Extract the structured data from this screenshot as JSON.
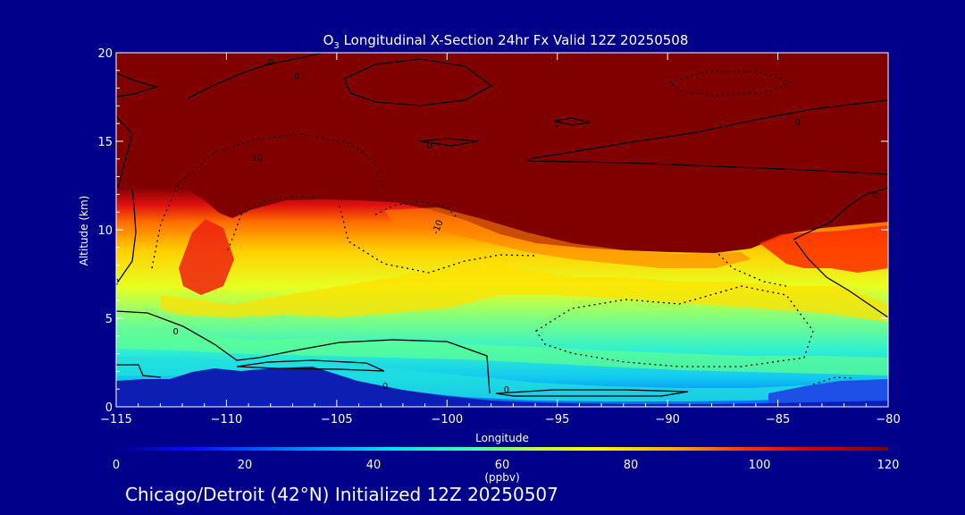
{
  "chart_data": {
    "type": "heatmap",
    "title_parts": {
      "o": "O",
      "sub": "3",
      "rest": " Longitudinal X-Section 24hr  Fx Valid 12Z 20250508"
    },
    "xlabel": "Longitude",
    "ylabel": "Altitude (km)",
    "xlim": [
      -115,
      -80
    ],
    "ylim": [
      0,
      20
    ],
    "x_ticks": [
      -115,
      -110,
      -105,
      -100,
      -95,
      -90,
      -85,
      -80
    ],
    "x_tick_labels": [
      "−115",
      "−110",
      "−105",
      "−100",
      "−95",
      "−90",
      "−85",
      "−80"
    ],
    "y_ticks": [
      0,
      5,
      10,
      15,
      20
    ],
    "y_tick_labels": [
      "0",
      "5",
      "10",
      "15",
      "20"
    ],
    "colorbar": {
      "label": "(ppbv)",
      "range": [
        0,
        120
      ],
      "ticks": [
        0,
        20,
        40,
        60,
        80,
        100,
        120
      ],
      "tick_labels": [
        "0",
        "20",
        "40",
        "60",
        "80",
        "100",
        "120"
      ]
    },
    "contour_labels": [
      {
        "text": "0",
        "lon": -108,
        "alt": 19.5
      },
      {
        "text": "0",
        "lon": -106.8,
        "alt": 18.7
      },
      {
        "text": "0",
        "lon": -95,
        "alt": 16.0
      },
      {
        "text": "0",
        "lon": -100.8,
        "alt": 14.8
      },
      {
        "text": "0",
        "lon": -84.1,
        "alt": 16.1
      },
      {
        "text": "10",
        "lon": -108.6,
        "alt": 14.1
      },
      {
        "text": "-10",
        "lon": -100.3,
        "alt": 10.3
      },
      {
        "text": "0",
        "lon": -80.6,
        "alt": 12.0
      },
      {
        "text": "0",
        "lon": -115,
        "alt": 7.1
      },
      {
        "text": "0",
        "lon": -112.3,
        "alt": 4.3
      },
      {
        "text": "0",
        "lon": -102.8,
        "alt": 1.2
      },
      {
        "text": "0",
        "lon": -97.3,
        "alt": 1.0
      }
    ],
    "colors": {
      "background": "#00008b",
      "stratosphere": "#800000",
      "surface": "#0c1fb2"
    }
  },
  "footer": {
    "location": "Chicago/Detroit (42°N) Initialized 12Z 20250507"
  }
}
